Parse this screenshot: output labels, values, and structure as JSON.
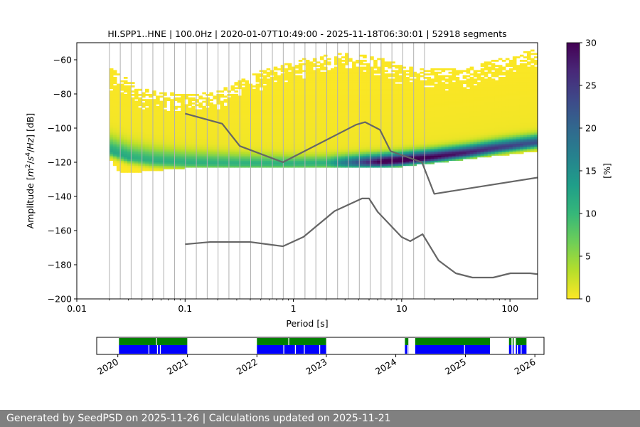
{
  "footer": "Generated by SeedPSD on 2025-11-26 | Calculations updated on 2025-11-21",
  "chart_data": [
    {
      "type": "heatmap",
      "title": "HI.SPP1..HNE | 100.0Hz | 2020-01-07T10:49:00 - 2025-11-18T06:30:01 | 52918 segments",
      "xlabel": "Period [s]",
      "ylabel_parts": [
        "Amplitude [",
        "m",
        "2",
        "/",
        "s",
        "4",
        "/",
        "Hz",
        "] [dB]"
      ],
      "x_scale": "log",
      "xlim": [
        0.01,
        180
      ],
      "ylim": [
        -200,
        -50
      ],
      "x_ticks": [
        0.01,
        0.1,
        1,
        10,
        100
      ],
      "x_tick_labels": [
        "0.01",
        "0.1",
        "1",
        "10",
        "100"
      ],
      "y_ticks": [
        -200,
        -180,
        -160,
        -140,
        -120,
        -100,
        -80,
        -60
      ],
      "y_tick_labels": [
        "−200",
        "−180",
        "−160",
        "−140",
        "−120",
        "−100",
        "−80",
        "−60"
      ],
      "grid": "vertical lines at PSD period bins",
      "colormap": "viridis_r",
      "colorbar": {
        "label": "[%]",
        "range": [
          0,
          30
        ],
        "ticks": [
          0,
          5,
          10,
          15,
          20,
          25,
          30
        ],
        "tick_labels": [
          "0",
          "5",
          "10",
          "15",
          "20",
          "25",
          "30"
        ],
        "colors": [
          "#fde725",
          "#b5de2b",
          "#6ece58",
          "#35b779",
          "#1f9e89",
          "#26828e",
          "#31688e",
          "#3e4989",
          "#482878",
          "#440154"
        ]
      },
      "psd_distribution": {
        "period_min": 0.02,
        "period_max": 180,
        "mode": [
          {
            "period": 0.02,
            "db": -114
          },
          {
            "period": 0.03,
            "db": -118
          },
          {
            "period": 0.05,
            "db": -120
          },
          {
            "period": 0.1,
            "db": -121
          },
          {
            "period": 0.3,
            "db": -121.5
          },
          {
            "period": 1,
            "db": -121.5
          },
          {
            "period": 3,
            "db": -121
          },
          {
            "period": 6,
            "db": -120.5
          },
          {
            "period": 10,
            "db": -119.5
          },
          {
            "period": 20,
            "db": -117.5
          },
          {
            "period": 40,
            "db": -115
          },
          {
            "period": 80,
            "db": -112
          },
          {
            "period": 180,
            "db": -109
          }
        ],
        "upper_envelope": [
          {
            "period": 0.02,
            "db": -66
          },
          {
            "period": 0.04,
            "db": -78
          },
          {
            "period": 0.1,
            "db": -82
          },
          {
            "period": 0.2,
            "db": -80
          },
          {
            "period": 0.5,
            "db": -68
          },
          {
            "period": 1,
            "db": -62
          },
          {
            "period": 3,
            "db": -57
          },
          {
            "period": 6,
            "db": -60
          },
          {
            "period": 15,
            "db": -67
          },
          {
            "period": 40,
            "db": -66
          },
          {
            "period": 100,
            "db": -59
          },
          {
            "period": 180,
            "db": -55
          }
        ],
        "lower_envelope": [
          {
            "period": 0.02,
            "db": -117
          },
          {
            "period": 0.025,
            "db": -126
          },
          {
            "period": 0.04,
            "db": -125
          },
          {
            "period": 0.1,
            "db": -123
          },
          {
            "period": 1,
            "db": -123
          },
          {
            "period": 10,
            "db": -122
          },
          {
            "period": 20,
            "db": -120
          },
          {
            "period": 50,
            "db": -117
          },
          {
            "period": 180,
            "db": -113
          }
        ]
      },
      "series": [
        {
          "name": "",
          "color": "#666666",
          "points": [
            {
              "x": 0.1,
              "y": -91.5
            },
            {
              "x": 0.22,
              "y": -97.4
            },
            {
              "x": 0.32,
              "y": -110.5
            },
            {
              "x": 0.8,
              "y": -120
            },
            {
              "x": 3.8,
              "y": -98
            },
            {
              "x": 4.6,
              "y": -96.5
            },
            {
              "x": 6.3,
              "y": -101
            },
            {
              "x": 7.9,
              "y": -113.5
            },
            {
              "x": 15.4,
              "y": -120
            },
            {
              "x": 20,
              "y": -138.5
            },
            {
              "x": 354.8,
              "y": -126
            }
          ]
        },
        {
          "name": "",
          "color": "#666666",
          "points": [
            {
              "x": 0.1,
              "y": -168
            },
            {
              "x": 0.17,
              "y": -166.7
            },
            {
              "x": 0.4,
              "y": -166.7
            },
            {
              "x": 0.8,
              "y": -169.2
            },
            {
              "x": 1.24,
              "y": -163.7
            },
            {
              "x": 2.4,
              "y": -148.6
            },
            {
              "x": 4.3,
              "y": -141.2
            },
            {
              "x": 5,
              "y": -141.2
            },
            {
              "x": 6,
              "y": -149
            },
            {
              "x": 10,
              "y": -163.8
            },
            {
              "x": 12,
              "y": -166.2
            },
            {
              "x": 15.6,
              "y": -162.1
            },
            {
              "x": 21.9,
              "y": -177.5
            },
            {
              "x": 31.6,
              "y": -185
            },
            {
              "x": 45,
              "y": -187.5
            },
            {
              "x": 70,
              "y": -187.5
            },
            {
              "x": 101,
              "y": -185
            },
            {
              "x": 154,
              "y": -185
            },
            {
              "x": 328,
              "y": -187.5
            }
          ]
        }
      ]
    },
    {
      "type": "timeline",
      "x_ticks": [
        "2020",
        "2021",
        "2022",
        "2023",
        "2024",
        "2025",
        "2026"
      ],
      "x_range": [
        "2019-09-12",
        "2026-02-18"
      ],
      "upper_color": "#008000",
      "lower_color": "#0000ff",
      "coverage": [
        [
          "2020-01-07",
          "2020-12-31"
        ],
        [
          "2022-01-01",
          "2022-12-31"
        ],
        [
          "2024-02-18",
          "2024-03-07"
        ],
        [
          "2024-04-12",
          "2025-05-10"
        ],
        [
          "2025-08-18",
          "2025-08-31"
        ],
        [
          "2025-09-06",
          "2025-09-12"
        ],
        [
          "2025-09-23",
          "2025-11-18"
        ]
      ],
      "gaps_lower": [
        "2020-06-10",
        "2020-07-25",
        "2020-08-09",
        "2022-05-20",
        "2022-07-20",
        "2022-09-05",
        "2022-11-25",
        "2024-03-02",
        "2024-12-25",
        "2025-09-29",
        "2025-10-19"
      ],
      "gaps_upper": [
        "2020-07-20",
        "2022-06-15"
      ]
    }
  ]
}
